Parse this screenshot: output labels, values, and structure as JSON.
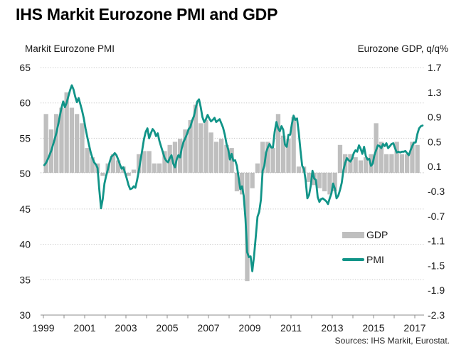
{
  "title": "IHS Markit Eurozone PMI and GDP",
  "left_axis_title": "Markit Eurozone PMI",
  "right_axis_title": "Eurozone GDP, q/q%",
  "legend": {
    "gdp_label": "GDP",
    "pmi_label": "PMI"
  },
  "source": "Sources: IHS Markit, Eurostat.",
  "colors": {
    "pmi_line": "#119488",
    "gdp_bar": "#bfbfbf",
    "gridline": "#c6c6c6",
    "zero_line": "#aeaeae",
    "axis": "#8c8c8c",
    "tick_text": "#1a1a1a"
  },
  "chart_data": {
    "type": "combo",
    "title": "IHS Markit Eurozone PMI and GDP",
    "x_axis": {
      "start_year": 1999,
      "end_year": 2017.6,
      "tick_years_labeled": [
        1999,
        2001,
        2003,
        2005,
        2007,
        2009,
        2011,
        2013,
        2015,
        2017
      ],
      "minor_ticks_every_year": true
    },
    "left_axis": {
      "ticks": [
        65,
        60,
        55,
        50,
        45,
        40,
        35,
        30
      ],
      "min": 30,
      "max": 65,
      "gridlines": "dotted"
    },
    "right_axis": {
      "ticks": [
        1.7,
        1.3,
        0.9,
        0.5,
        0.1,
        -0.3,
        -0.7,
        -1.1,
        -1.5,
        -1.9,
        -2.3
      ],
      "min": -2.3,
      "max": 1.7
    },
    "legend_position": "inside-right-lower",
    "series": [
      {
        "name": "GDP",
        "type": "bar",
        "axis": "right",
        "frequency": "quarterly",
        "start": "1999Q1",
        "end": "2017Q1",
        "values": [
          0.95,
          0.7,
          0.95,
          1.05,
          1.3,
          1.05,
          0.95,
          0.8,
          0.4,
          0.25,
          0.15,
          -0.05,
          0.15,
          0.3,
          0.2,
          0.1,
          -0.05,
          0.05,
          0.3,
          0.35,
          0.35,
          0.15,
          0.15,
          0.35,
          0.45,
          0.5,
          0.55,
          0.7,
          0.85,
          1.1,
          0.8,
          0.85,
          0.65,
          0.5,
          0.55,
          0.45,
          0.4,
          -0.3,
          -0.35,
          -1.75,
          -0.25,
          0.15,
          0.5,
          0.5,
          0.4,
          0.95,
          0.6,
          0.55,
          0.9,
          0.1,
          0.1,
          -0.15,
          -0.2,
          -0.25,
          -0.3,
          -0.35,
          -0.3,
          0.45,
          0.3,
          0.3,
          0.25,
          0.2,
          0.25,
          0.3,
          0.8,
          0.5,
          0.3,
          0.3,
          0.5,
          0.3,
          0.3,
          0.5,
          0.45
        ]
      },
      {
        "name": "PMI",
        "type": "line",
        "axis": "left",
        "frequency": "monthly",
        "start": "1999-01",
        "end": "2017-05",
        "values": [
          51.2,
          51.5,
          52.0,
          52.6,
          53.2,
          54.0,
          54.8,
          55.7,
          56.8,
          58.1,
          59.3,
          60.2,
          59.4,
          60.0,
          60.9,
          61.8,
          62.5,
          61.9,
          60.9,
          60.1,
          60.7,
          59.8,
          58.9,
          57.8,
          56.4,
          55.2,
          54.1,
          53.0,
          52.2,
          51.6,
          51.3,
          50.8,
          47.8,
          45.1,
          46.4,
          48.6,
          49.7,
          50.6,
          51.6,
          52.4,
          52.6,
          52.9,
          52.6,
          52.0,
          51.3,
          50.7,
          50.9,
          50.1,
          49.3,
          48.4,
          47.8,
          47.9,
          48.2,
          48.0,
          49.1,
          50.4,
          51.9,
          53.4,
          54.9,
          55.9,
          56.4,
          55.0,
          55.7,
          56.3,
          56.0,
          55.3,
          55.7,
          54.6,
          53.8,
          53.0,
          52.2,
          51.8,
          51.6,
          52.2,
          52.6,
          51.4,
          50.9,
          52.0,
          52.6,
          52.3,
          53.6,
          54.5,
          55.0,
          55.6,
          56.3,
          56.6,
          57.5,
          58.1,
          59.2,
          60.2,
          60.5,
          59.4,
          58.0,
          57.3,
          57.7,
          58.3,
          57.8,
          57.4,
          57.6,
          57.9,
          57.3,
          57.5,
          57.7,
          57.1,
          56.5,
          55.5,
          54.2,
          53.4,
          52.0,
          52.8,
          51.8,
          51.9,
          51.1,
          49.5,
          47.8,
          48.2,
          46.9,
          43.6,
          38.9,
          38.2,
          38.3,
          36.2,
          38.3,
          41.1,
          43.9,
          44.6,
          46.3,
          50.4,
          51.1,
          53.0,
          53.7,
          54.2,
          53.7,
          53.7,
          55.9,
          57.3,
          56.4,
          56.0,
          56.7,
          56.2,
          54.1,
          53.8,
          55.5,
          55.5,
          57.0,
          58.2,
          57.6,
          57.8,
          55.8,
          53.3,
          51.1,
          50.7,
          49.1,
          46.5,
          47.0,
          48.3,
          50.4,
          49.3,
          49.1,
          46.7,
          46.0,
          46.4,
          46.5,
          46.3,
          46.1,
          45.7,
          46.5,
          47.2,
          48.6,
          47.9,
          46.5,
          46.9,
          47.7,
          48.7,
          50.5,
          51.5,
          52.2,
          51.9,
          51.7,
          52.1,
          52.9,
          53.3,
          53.1,
          54.0,
          53.5,
          52.8,
          53.8,
          52.5,
          52.0,
          52.1,
          51.1,
          51.4,
          52.6,
          53.3,
          54.0,
          53.9,
          53.6,
          54.2,
          53.9,
          54.3,
          53.6,
          53.9,
          54.2,
          54.3,
          53.6,
          53.0,
          53.1,
          53.0,
          53.1,
          53.1,
          53.2,
          52.9,
          52.6,
          53.3,
          53.9,
          54.4,
          54.4,
          55.6,
          56.4,
          56.7,
          56.8
        ]
      }
    ]
  }
}
